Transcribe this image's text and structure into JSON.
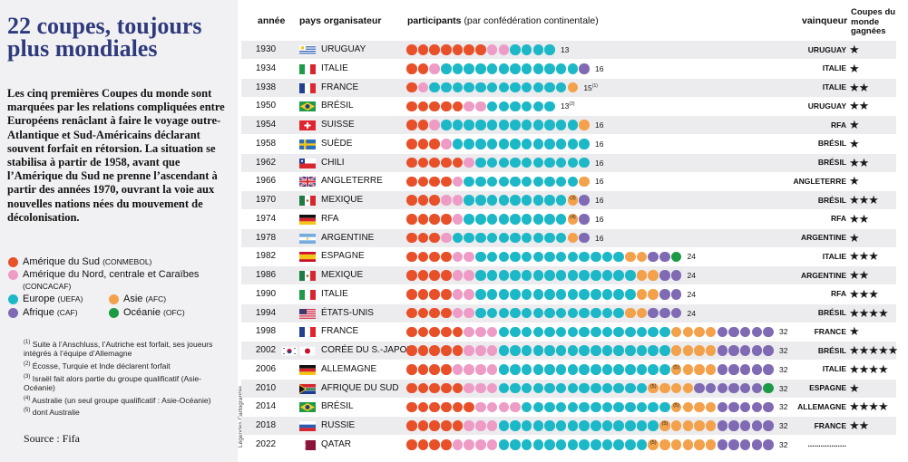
{
  "title": "22 coupes, toujours plus mondiales",
  "intro": "Les cinq premières Coupes du monde sont marquées par les relations compliquées entre Européens renâclant à faire le voyage outre-Atlantique et Sud-Américains déclarant souvent forfait en rétorsion. La situation se stabilisa à partir de 1958, avant que l’Amérique du Sud ne prenne l’ascendant à partir des années 1970, ouvrant la voie aux nouvelles nations nées du mouvement de décolonisation.",
  "headers": {
    "annee": "année",
    "pays": "pays organisateur",
    "participants": "participants",
    "participants_sub": "(par confédération continentale)",
    "vainqueur": "vainqueur",
    "coupes": "Coupes du monde gagnées"
  },
  "legend": {
    "conmebol": "Amérique du Sud",
    "conmebol_abbr": "(CONMEBOL)",
    "concacaf": "Amérique du Nord, centrale et Caraïbes",
    "concacaf_abbr": "(CONCACAF)",
    "uefa": "Europe",
    "uefa_abbr": "(UEFA)",
    "afc": "Asie",
    "afc_abbr": "(AFC)",
    "caf": "Afrique",
    "caf_abbr": "(CAF)",
    "ofc": "Océanie",
    "ofc_abbr": "(OFC)"
  },
  "colors": {
    "conmebol": "#e8502a",
    "concacaf": "#ee9cc6",
    "uefa": "#1cb8c7",
    "afc": "#f3a14b",
    "caf": "#7f6ab3",
    "ofc": "#1d9a45",
    "title": "#2f3a7c",
    "star": "#1a1a1a"
  },
  "notes": [
    {
      "n": "(1)",
      "text": "Suite à l’Anschluss, l’Autriche est forfait, ses joueurs intégrés à l’équipe d’Allemagne"
    },
    {
      "n": "(2)",
      "text": "Écosse, Turquie et Inde déclarent forfait"
    },
    {
      "n": "(3)",
      "text": "Israël fait alors partie du groupe qualificatif (Asie-Océanie)"
    },
    {
      "n": "(4)",
      "text": "Australie (un seul groupe qualificatif : Asie-Océanie)"
    },
    {
      "n": "(5)",
      "text": "dont Australie"
    }
  ],
  "source": "Source : Fifa",
  "credit": "Légendes Cartographie",
  "chart_data": {
    "type": "table",
    "title": "22 coupes, toujours plus mondiales",
    "series_order": [
      "conmebol",
      "concacaf",
      "uefa",
      "afc",
      "caf",
      "ofc"
    ],
    "rows": [
      {
        "year": "1930",
        "host": "URUGUAY",
        "flags": [
          "uruguay"
        ],
        "counts": {
          "conmebol": 7,
          "concacaf": 2,
          "uefa": 4
        },
        "total": "13",
        "total_note": "",
        "winner": "URUGUAY",
        "cups": "★",
        "mark_notes": {}
      },
      {
        "year": "1934",
        "host": "ITALIE",
        "flags": [
          "italy"
        ],
        "counts": {
          "conmebol": 2,
          "concacaf": 1,
          "uefa": 12,
          "caf": 1
        },
        "total": "16",
        "total_note": "",
        "winner": "ITALIE",
        "cups": "★",
        "mark_notes": {}
      },
      {
        "year": "1938",
        "host": "FRANCE",
        "flags": [
          "france"
        ],
        "counts": {
          "conmebol": 1,
          "concacaf": 1,
          "uefa": 12,
          "afc": 1
        },
        "total": "15",
        "total_note": "(1)",
        "winner": "ITALIE",
        "cups": "★★",
        "mark_notes": {}
      },
      {
        "year": "1950",
        "host": "BRÉSIL",
        "flags": [
          "brazil"
        ],
        "counts": {
          "conmebol": 5,
          "concacaf": 2,
          "uefa": 6
        },
        "total": "13",
        "total_note": "(2)",
        "winner": "URUGUAY",
        "cups": "★★",
        "mark_notes": {}
      },
      {
        "year": "1954",
        "host": "SUISSE",
        "flags": [
          "switzerland"
        ],
        "counts": {
          "conmebol": 2,
          "concacaf": 1,
          "uefa": 12,
          "afc": 1
        },
        "total": "16",
        "total_note": "",
        "winner": "RFA",
        "cups": "★",
        "mark_notes": {}
      },
      {
        "year": "1958",
        "host": "SUÈDE",
        "flags": [
          "sweden"
        ],
        "counts": {
          "conmebol": 3,
          "concacaf": 1,
          "uefa": 12
        },
        "total": "16",
        "total_note": "",
        "winner": "BRÉSIL",
        "cups": "★",
        "mark_notes": {}
      },
      {
        "year": "1962",
        "host": "CHILI",
        "flags": [
          "chile"
        ],
        "counts": {
          "conmebol": 5,
          "concacaf": 1,
          "uefa": 10
        },
        "total": "16",
        "total_note": "",
        "winner": "BRÉSIL",
        "cups": "★★",
        "mark_notes": {}
      },
      {
        "year": "1966",
        "host": "ANGLETERRE",
        "flags": [
          "england"
        ],
        "counts": {
          "conmebol": 4,
          "concacaf": 1,
          "uefa": 10,
          "afc": 1
        },
        "total": "16",
        "total_note": "",
        "winner": "ANGLETERRE",
        "cups": "★",
        "mark_notes": {}
      },
      {
        "year": "1970",
        "host": "MEXIQUE",
        "flags": [
          "mexico"
        ],
        "counts": {
          "conmebol": 3,
          "concacaf": 2,
          "afc": 1,
          "caf": 1,
          "uefa": 9
        },
        "total": "16",
        "total_note": "",
        "winner": "BRÉSIL",
        "cups": "★★★",
        "mark_notes": {
          "afc": "3"
        }
      },
      {
        "year": "1974",
        "host": "RFA",
        "flags": [
          "germany"
        ],
        "counts": {
          "conmebol": 4,
          "concacaf": 1,
          "afc": 1,
          "caf": 1,
          "uefa": 9
        },
        "total": "16",
        "total_note": "",
        "winner": "RFA",
        "cups": "★★",
        "mark_notes": {
          "afc": "4"
        }
      },
      {
        "year": "1978",
        "host": "ARGENTINE",
        "flags": [
          "argentina"
        ],
        "counts": {
          "conmebol": 3,
          "concacaf": 1,
          "afc": 1,
          "caf": 1,
          "uefa": 10
        },
        "total": "16",
        "total_note": "",
        "winner": "ARGENTINE",
        "cups": "★",
        "mark_notes": {}
      },
      {
        "year": "1982",
        "host": "ESPAGNE",
        "flags": [
          "spain"
        ],
        "counts": {
          "conmebol": 4,
          "concacaf": 2,
          "afc": 2,
          "caf": 2,
          "ofc": 1,
          "uefa": 13
        },
        "total": "24",
        "total_note": "",
        "winner": "ITALIE",
        "cups": "★★★",
        "mark_notes": {}
      },
      {
        "year": "1986",
        "host": "MEXIQUE",
        "flags": [
          "mexico"
        ],
        "counts": {
          "conmebol": 4,
          "concacaf": 2,
          "afc": 2,
          "caf": 2,
          "uefa": 14
        },
        "total": "24",
        "total_note": "",
        "winner": "ARGENTINE",
        "cups": "★★",
        "mark_notes": {}
      },
      {
        "year": "1990",
        "host": "ITALIE",
        "flags": [
          "italy"
        ],
        "counts": {
          "conmebol": 4,
          "concacaf": 2,
          "afc": 2,
          "caf": 2,
          "uefa": 14
        },
        "total": "24",
        "total_note": "",
        "winner": "RFA",
        "cups": "★★★",
        "mark_notes": {}
      },
      {
        "year": "1994",
        "host": "ÉTATS-UNIS",
        "flags": [
          "usa"
        ],
        "counts": {
          "conmebol": 4,
          "concacaf": 2,
          "afc": 2,
          "caf": 3,
          "uefa": 13
        },
        "total": "24",
        "total_note": "",
        "winner": "BRÉSIL",
        "cups": "★★★★",
        "mark_notes": {}
      },
      {
        "year": "1998",
        "host": "FRANCE",
        "flags": [
          "france"
        ],
        "counts": {
          "conmebol": 5,
          "concacaf": 3,
          "afc": 4,
          "caf": 5,
          "uefa": 15
        },
        "total": "32",
        "total_note": "",
        "winner": "FRANCE",
        "cups": "★",
        "mark_notes": {}
      },
      {
        "year": "2002",
        "host": "CORÉE DU S.-JAPON",
        "flags": [
          "korea",
          "japan"
        ],
        "counts": {
          "conmebol": 5,
          "concacaf": 3,
          "afc": 4,
          "caf": 5,
          "uefa": 15
        },
        "total": "32",
        "total_note": "",
        "winner": "BRÉSIL",
        "cups": "★★★★★",
        "mark_notes": {}
      },
      {
        "year": "2006",
        "host": "ALLEMAGNE",
        "flags": [
          "germany"
        ],
        "counts": {
          "conmebol": 4,
          "concacaf": 4,
          "afc": 4,
          "caf": 5,
          "uefa": 15
        },
        "total": "32",
        "total_note": "",
        "winner": "ITALIE",
        "cups": "★★★★",
        "mark_notes": {
          "afc": "5"
        }
      },
      {
        "year": "2010",
        "host": "AFRIQUE DU SUD",
        "flags": [
          "south_africa"
        ],
        "counts": {
          "conmebol": 5,
          "concacaf": 3,
          "afc": 4,
          "caf": 6,
          "ofc": 1,
          "uefa": 13
        },
        "total": "32",
        "total_note": "",
        "winner": "ESPAGNE",
        "cups": "★",
        "mark_notes": {
          "afc": "5"
        }
      },
      {
        "year": "2014",
        "host": "BRÉSIL",
        "flags": [
          "brazil"
        ],
        "counts": {
          "conmebol": 6,
          "concacaf": 4,
          "afc": 4,
          "caf": 5,
          "uefa": 13
        },
        "total": "32",
        "total_note": "",
        "winner": "ALLEMAGNE",
        "cups": "★★★★",
        "mark_notes": {
          "afc": "5"
        }
      },
      {
        "year": "2018",
        "host": "RUSSIE",
        "flags": [
          "russia"
        ],
        "counts": {
          "conmebol": 5,
          "concacaf": 3,
          "afc": 5,
          "caf": 5,
          "uefa": 14
        },
        "total": "32",
        "total_note": "",
        "winner": "FRANCE",
        "cups": "★★",
        "mark_notes": {
          "afc": "5"
        }
      },
      {
        "year": "2022",
        "host": "QATAR",
        "flags": [
          "qatar"
        ],
        "counts": {
          "conmebol": 4,
          "concacaf": 4,
          "afc": 6,
          "caf": 5,
          "uefa": 13
        },
        "total": "32",
        "total_note": "",
        "winner": "..................",
        "cups": "",
        "mark_notes": {
          "afc": "5"
        }
      }
    ]
  }
}
